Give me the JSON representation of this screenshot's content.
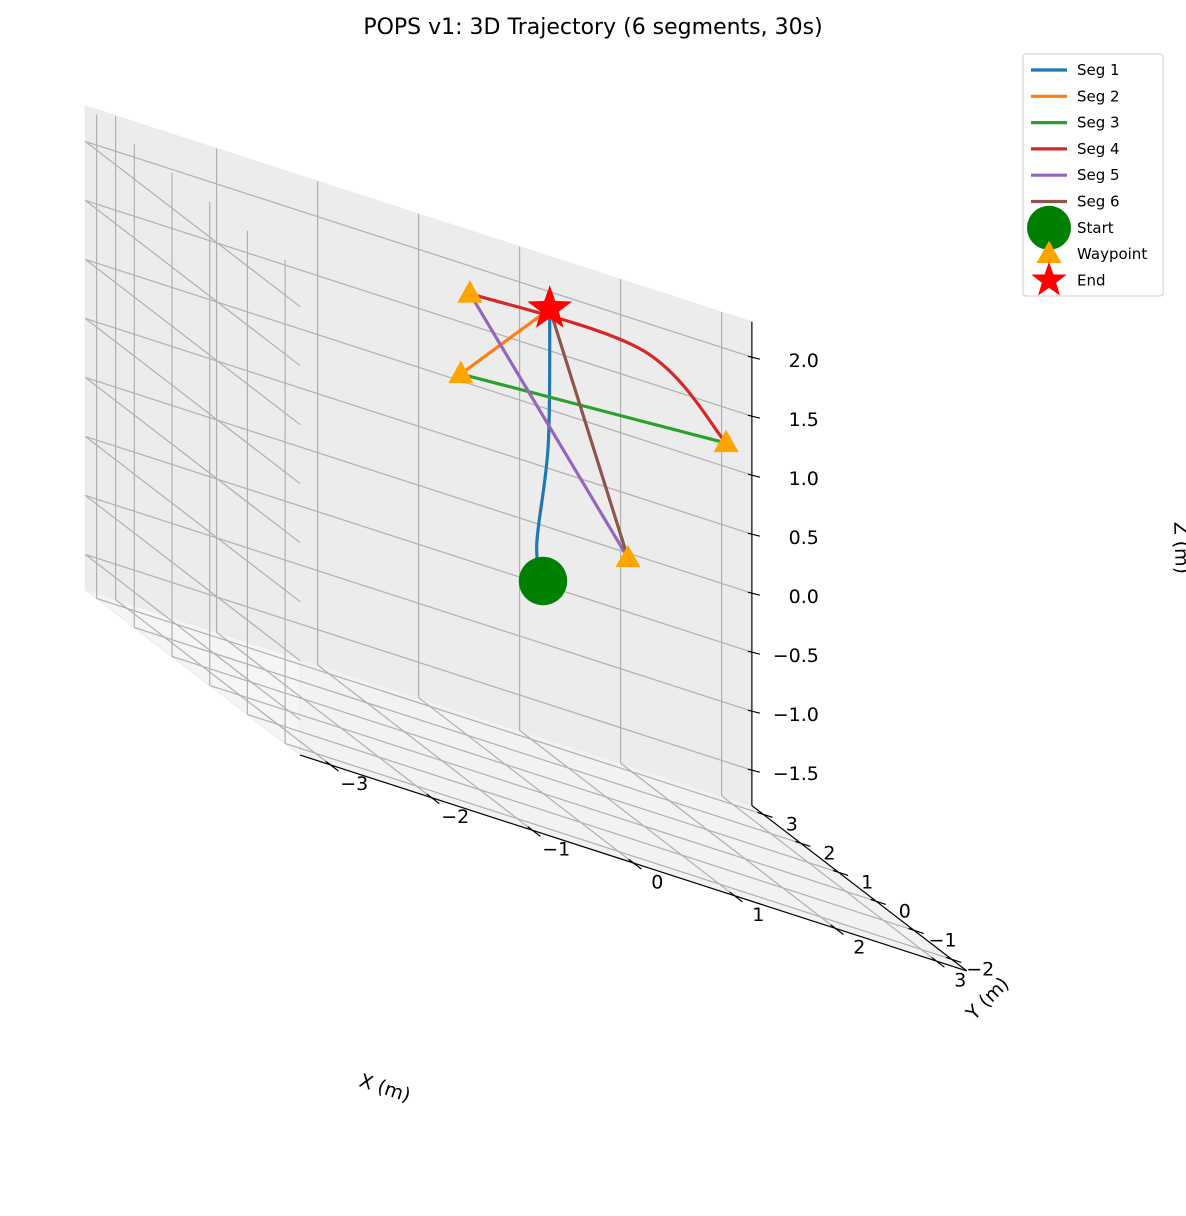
{
  "chart_data": {
    "type": "line",
    "projection": "3d",
    "title": "POPS v1: 3D Trajectory (6 segments, 30s)",
    "xlabel": "X (m)",
    "ylabel": "Y (m)",
    "zlabel": "Z (m)",
    "xlim": [
      -3.3,
      3.3
    ],
    "ylim": [
      -2.4,
      3.3
    ],
    "zlim": [
      -1.8,
      2.3
    ],
    "xticks": [
      -3,
      -2,
      -1,
      0,
      1,
      2,
      3
    ],
    "yticks": [
      -2,
      -1,
      0,
      1,
      2,
      3
    ],
    "zticks": [
      -1.5,
      -1.0,
      -0.5,
      0.0,
      0.5,
      1.0,
      1.5,
      2.0
    ],
    "xtick_labels": [
      "−3",
      "−2",
      "−1",
      "0",
      "1",
      "2",
      "3"
    ],
    "ytick_labels": [
      "−2",
      "−1",
      "0",
      "1",
      "2",
      "3"
    ],
    "ztick_labels": [
      "−1.5",
      "−1.0",
      "−0.5",
      "0.0",
      "0.5",
      "1.0",
      "1.5",
      "2.0"
    ],
    "grid": true,
    "legend_position": "top-right",
    "series": [
      {
        "name": "Seg 1",
        "color": "#1f77b4",
        "points": [
          [
            0,
            0,
            0
          ],
          [
            0.05,
            0.3,
            0.25
          ],
          [
            0.5,
            1.2,
            1.0
          ],
          [
            1.0,
            2.5,
            1.97
          ]
        ]
      },
      {
        "name": "Seg 2",
        "color": "#ff7f0e",
        "points": [
          [
            1.0,
            2.5,
            1.97
          ],
          [
            -1.0,
            -0.5,
            1.6
          ]
        ]
      },
      {
        "name": "Seg 3",
        "color": "#2ca02c",
        "points": [
          [
            -1.0,
            -0.5,
            1.6
          ],
          [
            2.0,
            0.5,
            1.6
          ]
        ]
      },
      {
        "name": "Seg 4",
        "color": "#d62728",
        "points": [
          [
            2.0,
            0.5,
            1.6
          ],
          [
            0.8,
            -0.5,
            2.3
          ],
          [
            -0.5,
            0.6,
            2.15
          ]
        ]
      },
      {
        "name": "Seg 5",
        "color": "#9467bd",
        "points": [
          [
            -0.5,
            0.6,
            2.15
          ],
          [
            1.7,
            2.3,
            0.1
          ]
        ]
      },
      {
        "name": "Seg 6",
        "color": "#8c564b",
        "points": [
          [
            1.7,
            2.3,
            0.1
          ],
          [
            1.0,
            2.5,
            1.97
          ]
        ]
      }
    ],
    "markers": [
      {
        "name": "Start",
        "shape": "circle",
        "color": "#008000",
        "points": [
          [
            0,
            0,
            0
          ]
        ]
      },
      {
        "name": "Waypoint",
        "shape": "triangle",
        "color": "#ffa500",
        "points": [
          [
            -0.5,
            0.6,
            2.15
          ],
          [
            -1.0,
            -0.5,
            1.6
          ],
          [
            2.0,
            0.5,
            1.6
          ],
          [
            1.7,
            2.3,
            0.1
          ]
        ]
      },
      {
        "name": "End",
        "shape": "star",
        "color": "#ff0000",
        "points": [
          [
            1.0,
            2.5,
            1.97
          ]
        ]
      }
    ]
  }
}
